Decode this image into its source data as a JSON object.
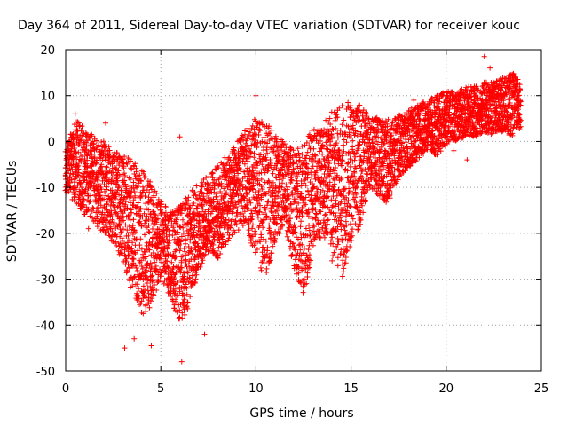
{
  "chart_data": {
    "type": "scatter",
    "title": "Day 364 of 2011, Sidereal Day-to-day VTEC variation (SDTVAR) for receiver kouc",
    "xlabel": "GPS time / hours",
    "ylabel": "SDTVAR / TECUs",
    "xlim": [
      0,
      25
    ],
    "ylim": [
      -50,
      20
    ],
    "x_ticks": [
      0,
      5,
      10,
      15,
      20,
      25
    ],
    "y_ticks": [
      -50,
      -40,
      -30,
      -20,
      -10,
      0,
      10,
      20
    ],
    "x_tick_labels": [
      "0",
      "5",
      "10",
      "15",
      "20",
      "25"
    ],
    "y_tick_labels": [
      "-50",
      "-40",
      "-30",
      "-20",
      "-10",
      "0",
      "10",
      "20"
    ],
    "grid": true,
    "marker": "+",
    "color": "#ff0000",
    "series": [
      {
        "name": "SDTVAR",
        "envelope": {
          "x": [
            0,
            0.5,
            1,
            1.5,
            2,
            2.5,
            3,
            3.5,
            4,
            4.5,
            5,
            5.5,
            6,
            6.5,
            7,
            7.5,
            8,
            8.5,
            9,
            9.5,
            10,
            10.5,
            11,
            11.5,
            12,
            12.5,
            13,
            13.5,
            14,
            14.5,
            15,
            15.5,
            16,
            16.5,
            17,
            17.5,
            18,
            18.5,
            19,
            19.5,
            20,
            20.5,
            21,
            21.5,
            22,
            22.5,
            23,
            23.5,
            23.9
          ],
          "upper": [
            -2,
            5,
            3,
            1,
            0,
            -2,
            -3,
            -4,
            -6,
            -9,
            -13,
            -15,
            -14,
            -11,
            -9,
            -7,
            -5,
            -3,
            0,
            3,
            5,
            4,
            2,
            0,
            -2,
            0,
            3,
            5,
            7,
            8,
            9,
            8,
            6,
            5,
            5,
            6,
            7,
            8,
            9,
            10,
            11,
            11,
            12,
            12,
            13,
            13,
            14,
            15,
            13
          ],
          "lower": [
            -12,
            -13,
            -16,
            -18,
            -20,
            -22,
            -26,
            -33,
            -38,
            -36,
            -30,
            -34,
            -40,
            -36,
            -28,
            -24,
            -26,
            -22,
            -20,
            -18,
            -26,
            -30,
            -22,
            -18,
            -28,
            -34,
            -24,
            -20,
            -26,
            -30,
            -22,
            -18,
            -10,
            -12,
            -14,
            -8,
            -6,
            -4,
            -2,
            -3,
            -1,
            0,
            1,
            1,
            2,
            1,
            2,
            1,
            3
          ]
        },
        "outliers": [
          [
            0.5,
            6
          ],
          [
            1.2,
            -19
          ],
          [
            2.1,
            4
          ],
          [
            3.1,
            -45
          ],
          [
            3.6,
            -43
          ],
          [
            4.5,
            -44.5
          ],
          [
            6.0,
            1
          ],
          [
            6.1,
            -48
          ],
          [
            7.3,
            -42
          ],
          [
            10.0,
            10
          ],
          [
            14.0,
            -26
          ],
          [
            18.3,
            9
          ],
          [
            20.4,
            -2
          ],
          [
            21.1,
            -4
          ],
          [
            22.0,
            18.5
          ],
          [
            22.3,
            16
          ]
        ]
      }
    ]
  }
}
